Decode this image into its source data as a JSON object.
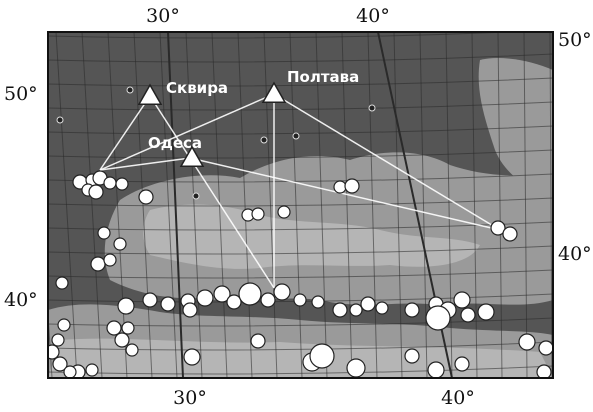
{
  "map": {
    "colors": {
      "frame": "#111111",
      "sea": "#9a9a9a",
      "land": "#555555",
      "shelf": "#c8c8c8",
      "grid": "#2a2a2a",
      "marker_fill": "#ffffff",
      "marker_stroke": "#222222",
      "ray": "#ffffff"
    },
    "coordinate_labels": {
      "top": [
        "30°",
        "40°"
      ],
      "bottom": [
        "30°",
        "40°"
      ],
      "left": [
        "50°",
        "40°"
      ],
      "right": [
        "50°",
        "40°"
      ]
    },
    "stations": [
      {
        "id": "skvyra",
        "label": "Сквира",
        "icon": "triangle-station-icon"
      },
      {
        "id": "poltava",
        "label": "Полтава",
        "icon": "triangle-station-icon"
      },
      {
        "id": "odesa",
        "label": "Одеса",
        "icon": "triangle-station-icon"
      }
    ],
    "event_marker_icon": "circle-event-icon"
  }
}
